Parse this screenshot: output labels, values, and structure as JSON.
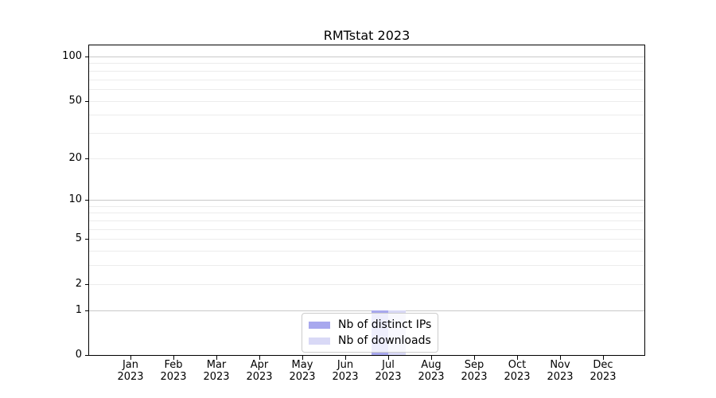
{
  "chart_data": {
    "type": "bar",
    "title": "RMTstat 2023",
    "categories": [
      "Jan\n2023",
      "Feb\n2023",
      "Mar\n2023",
      "Apr\n2023",
      "May\n2023",
      "Jun\n2023",
      "Jul\n2023",
      "Aug\n2023",
      "Sep\n2023",
      "Oct\n2023",
      "Nov\n2023",
      "Dec\n2023"
    ],
    "series": [
      {
        "name": "Nb of distinct IPs",
        "color": "#a8a8ee",
        "values": [
          0,
          0,
          0,
          0,
          0,
          0,
          1,
          0,
          0,
          0,
          0,
          0
        ]
      },
      {
        "name": "Nb of downloads",
        "color": "#d9d9f6",
        "values": [
          0,
          0,
          0,
          0,
          0,
          0,
          1,
          0,
          0,
          0,
          0,
          0
        ]
      }
    ],
    "y_axis": {
      "scale": "log1p",
      "ticks": [
        0,
        1,
        2,
        5,
        10,
        20,
        50,
        100
      ],
      "range": [
        0,
        119
      ]
    },
    "gridlines": {
      "major": [
        1,
        10,
        100
      ],
      "minor": [
        2,
        3,
        4,
        5,
        6,
        7,
        8,
        9,
        20,
        30,
        40,
        50,
        60,
        70,
        80,
        90
      ],
      "major_color": "#c8c8c8",
      "minor_color": "#ececec"
    },
    "legend": {
      "position": "lower center"
    },
    "colors": {
      "axis": "#000000",
      "text": "#000000",
      "legend_border": "#cccccc"
    }
  }
}
